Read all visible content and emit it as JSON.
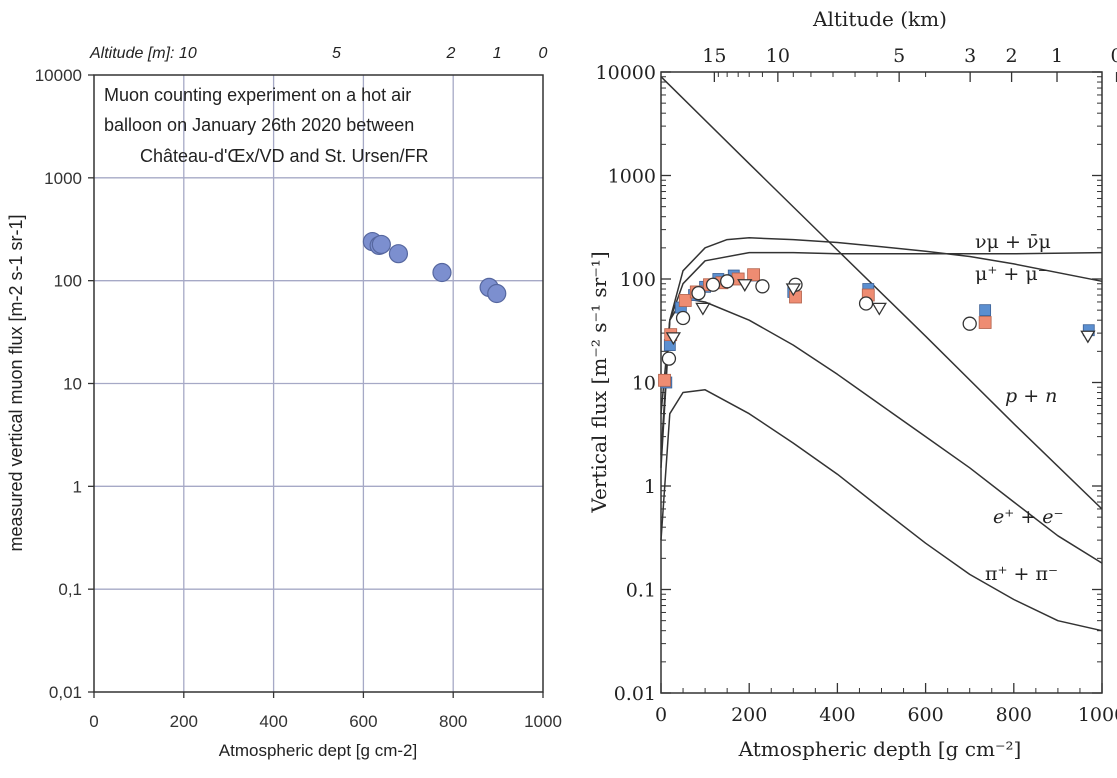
{
  "chart_data": [
    {
      "type": "scatter",
      "title_lines": [
        "Muon counting experiment on a hot air",
        "balloon on January 26th 2020 between",
        "Château-d'Œx/VD and St. Ursen/FR"
      ],
      "xlabel": "Atmospheric dept [g cm-2]",
      "ylabel": "measured vertical muon flux [m-2 s-1 sr-1]",
      "xlim": [
        0,
        1000
      ],
      "ylim": [
        0.01,
        10000
      ],
      "yscale": "log",
      "grid": true,
      "x_ticks": [
        "0",
        "200",
        "400",
        "600",
        "800",
        "1000"
      ],
      "y_ticks": [
        "0,01",
        "0,1",
        "1",
        "10",
        "100",
        "1000",
        "10000"
      ],
      "top_axis_prefix": "Altitude [m]: 10",
      "top_axis_ticks": [
        {
          "label": "5",
          "depth": 540
        },
        {
          "label": "2",
          "depth": 795
        },
        {
          "label": "1",
          "depth": 898
        },
        {
          "label": "0",
          "depth": 1000
        }
      ],
      "points": [
        {
          "x": 620,
          "y": 240
        },
        {
          "x": 635,
          "y": 220
        },
        {
          "x": 640,
          "y": 225
        },
        {
          "x": 678,
          "y": 183
        },
        {
          "x": 775,
          "y": 120
        },
        {
          "x": 880,
          "y": 86
        },
        {
          "x": 897,
          "y": 75
        }
      ],
      "marker_color": "#7c8fcf"
    },
    {
      "type": "line",
      "top_axis_title": "Altitude (km)",
      "top_axis_ticks": [
        {
          "label": "15",
          "depth": 121
        },
        {
          "label": "10",
          "depth": 265
        },
        {
          "label": "5",
          "depth": 540
        },
        {
          "label": "3",
          "depth": 701
        },
        {
          "label": "2",
          "depth": 795
        },
        {
          "label": "1",
          "depth": 898
        },
        {
          "label": "0",
          "depth": 1033
        }
      ],
      "xlabel": "Atmospheric depth   [g cm⁻²]",
      "ylabel": "Vertical flux   [m⁻² s⁻¹ sr⁻¹]",
      "xlim": [
        0,
        1000
      ],
      "ylim": [
        0.01,
        10000
      ],
      "yscale": "log",
      "x_ticks": [
        "0",
        "200",
        "400",
        "600",
        "800",
        "1000"
      ],
      "y_ticks": [
        "0.01",
        "0.1",
        "1",
        "10",
        "100",
        "1000",
        "10000"
      ],
      "series": [
        {
          "name": "p + n",
          "x": [
            0,
            200,
            400,
            600,
            800,
            1000
          ],
          "y": [
            9000,
            1300,
            190,
            28,
            4,
            0.6
          ]
        },
        {
          "name": "νμ + ν̄μ",
          "x": [
            0,
            20,
            50,
            100,
            200,
            300,
            400,
            500,
            600,
            700,
            800,
            1000
          ],
          "y": [
            5,
            40,
            90,
            150,
            180,
            180,
            175,
            175,
            175,
            175,
            175,
            180
          ]
        },
        {
          "name": "μ⁺ + μ⁻",
          "x": [
            0,
            20,
            50,
            100,
            150,
            200,
            300,
            400,
            500,
            600,
            700,
            800,
            1000
          ],
          "y": [
            2,
            40,
            120,
            200,
            240,
            250,
            240,
            225,
            205,
            185,
            165,
            140,
            95
          ]
        },
        {
          "name": "e⁺ + e⁻",
          "x": [
            0,
            20,
            50,
            100,
            200,
            300,
            400,
            500,
            600,
            700,
            800,
            900,
            1000
          ],
          "y": [
            1.5,
            40,
            65,
            60,
            40,
            23,
            12,
            6,
            3,
            1.5,
            0.7,
            0.33,
            0.18
          ]
        },
        {
          "name": "π⁺ + π⁻",
          "x": [
            0,
            20,
            50,
            100,
            200,
            300,
            400,
            500,
            600,
            700,
            800,
            900,
            1000
          ],
          "y": [
            0.3,
            5,
            8,
            8.5,
            5,
            2.6,
            1.3,
            0.6,
            0.28,
            0.14,
            0.08,
            0.05,
            0.04
          ]
        }
      ],
      "markers": {
        "blue_squares": [
          [
            12,
            10
          ],
          [
            20,
            23
          ],
          [
            45,
            53
          ],
          [
            75,
            70
          ],
          [
            100,
            84
          ],
          [
            130,
            100
          ],
          [
            165,
            108
          ],
          [
            210,
            108
          ],
          [
            300,
            75
          ],
          [
            470,
            80
          ],
          [
            735,
            50
          ],
          [
            970,
            32
          ]
        ],
        "red_squares": [
          [
            8,
            10.5
          ],
          [
            22,
            29
          ],
          [
            55,
            62
          ],
          [
            80,
            75
          ],
          [
            110,
            88
          ],
          [
            138,
            92
          ],
          [
            175,
            100
          ],
          [
            210,
            110
          ],
          [
            305,
            67
          ],
          [
            470,
            70
          ],
          [
            735,
            38
          ]
        ],
        "open_circles": [
          [
            18,
            17
          ],
          [
            50,
            42
          ],
          [
            85,
            73
          ],
          [
            118,
            88
          ],
          [
            150,
            95
          ],
          [
            230,
            85
          ],
          [
            305,
            88
          ],
          [
            465,
            58
          ],
          [
            700,
            37
          ]
        ],
        "open_triangles": [
          [
            28,
            27
          ],
          [
            95,
            52
          ],
          [
            190,
            88
          ],
          [
            300,
            80
          ],
          [
            495,
            52
          ],
          [
            968,
            28
          ]
        ]
      },
      "marker_colors": {
        "blue": "#5b8fd0",
        "red": "#ee8c72"
      }
    }
  ]
}
